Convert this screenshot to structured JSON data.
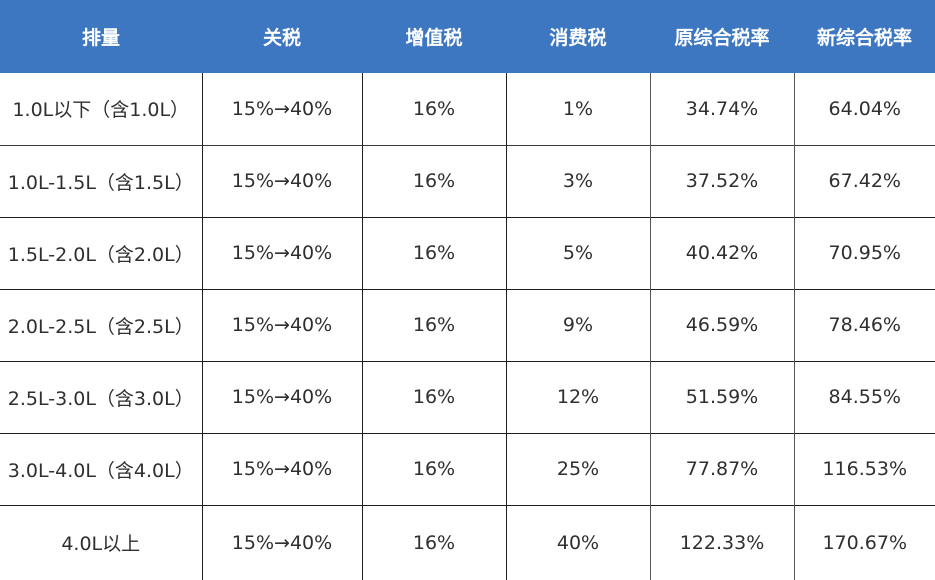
{
  "table": {
    "headers": [
      "排量",
      "关税",
      "增值税",
      "消费税",
      "原综合税率",
      "新综合税率"
    ],
    "rows": [
      [
        "1.0L以下（含1.0L）",
        "15%→40%",
        "16%",
        "1%",
        "34.74%",
        "64.04%"
      ],
      [
        "1.0L-1.5L（含1.5L）",
        "15%→40%",
        "16%",
        "3%",
        "37.52%",
        "67.42%"
      ],
      [
        "1.5L-2.0L（含2.0L）",
        "15%→40%",
        "16%",
        "5%",
        "40.42%",
        "70.95%"
      ],
      [
        "2.0L-2.5L（含2.5L）",
        "15%→40%",
        "16%",
        "9%",
        "46.59%",
        "78.46%"
      ],
      [
        "2.5L-3.0L（含3.0L）",
        "15%→40%",
        "16%",
        "12%",
        "51.59%",
        "84.55%"
      ],
      [
        "3.0L-4.0L（含4.0L）",
        "15%→40%",
        "16%",
        "25%",
        "77.87%",
        "116.53%"
      ],
      [
        "4.0L以上",
        "15%→40%",
        "16%",
        "40%",
        "122.33%",
        "170.67%"
      ]
    ]
  },
  "colors": {
    "header_bg": "#3d77c1",
    "header_text": "#ffffff",
    "cell_text": "#2f2f2f",
    "grid": "#1e1e1e"
  }
}
